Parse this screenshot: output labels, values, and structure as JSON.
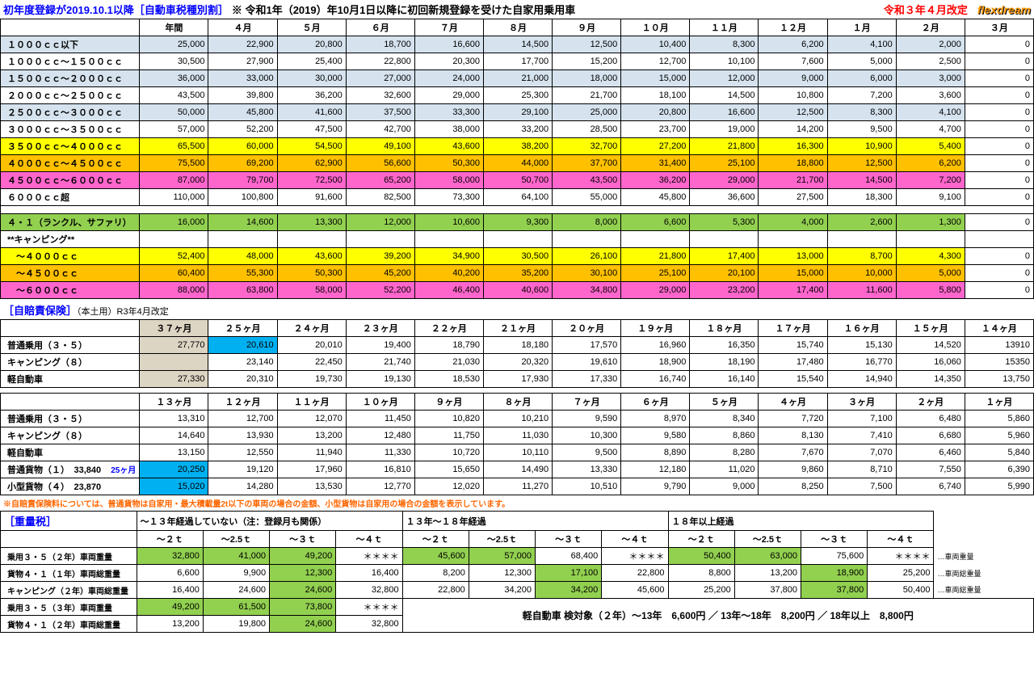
{
  "header": {
    "title_blue": "初年度登録が2019.10.1以降",
    "title_bracket": "［自動車税種別割］",
    "title_note": "※ 令和1年（2019）年10月1日以降に初回新規登録を受けた自家用乗用車",
    "revision": "令和３年４月改定",
    "logo": "flexdream"
  },
  "colors": {
    "lightblue": "#d6e3ef",
    "yellow": "#ffff00",
    "orange": "#ffc000",
    "pink": "#ff66cc",
    "green": "#92d050",
    "tan": "#ddd5c3",
    "cyan": "#00b0f0",
    "white": "#ffffff"
  },
  "tax_table": {
    "headers": [
      "年間",
      "４月",
      "５月",
      "６月",
      "７月",
      "８月",
      "９月",
      "１０月",
      "１１月",
      "１２月",
      "１月",
      "２月",
      "３月"
    ],
    "rows": [
      {
        "label": "１０００ｃｃ以下",
        "color": "lightblue",
        "vals": [
          "25,000",
          "22,900",
          "20,800",
          "18,700",
          "16,600",
          "14,500",
          "12,500",
          "10,400",
          "8,300",
          "6,200",
          "4,100",
          "2,000",
          "0"
        ]
      },
      {
        "label": "１０００ｃｃ～１５００ｃｃ",
        "color": "white",
        "vals": [
          "30,500",
          "27,900",
          "25,400",
          "22,800",
          "20,300",
          "17,700",
          "15,200",
          "12,700",
          "10,100",
          "7,600",
          "5,000",
          "2,500",
          "0"
        ]
      },
      {
        "label": "１５００ｃｃ～２０００ｃｃ",
        "color": "lightblue",
        "vals": [
          "36,000",
          "33,000",
          "30,000",
          "27,000",
          "24,000",
          "21,000",
          "18,000",
          "15,000",
          "12,000",
          "9,000",
          "6,000",
          "3,000",
          "0"
        ]
      },
      {
        "label": "２０００ｃｃ～２５００ｃｃ",
        "color": "white",
        "vals": [
          "43,500",
          "39,800",
          "36,200",
          "32,600",
          "29,000",
          "25,300",
          "21,700",
          "18,100",
          "14,500",
          "10,800",
          "7,200",
          "3,600",
          "0"
        ]
      },
      {
        "label": "２５００ｃｃ～３０００ｃｃ",
        "color": "lightblue",
        "vals": [
          "50,000",
          "45,800",
          "41,600",
          "37,500",
          "33,300",
          "29,100",
          "25,000",
          "20,800",
          "16,600",
          "12,500",
          "8,300",
          "4,100",
          "0"
        ]
      },
      {
        "label": "３０００ｃｃ～３５００ｃｃ",
        "color": "white",
        "vals": [
          "57,000",
          "52,200",
          "47,500",
          "42,700",
          "38,000",
          "33,200",
          "28,500",
          "23,700",
          "19,000",
          "14,200",
          "9,500",
          "4,700",
          "0"
        ]
      },
      {
        "label": "３５００ｃｃ～４０００ｃｃ",
        "color": "yellow",
        "vals": [
          "65,500",
          "60,000",
          "54,500",
          "49,100",
          "43,600",
          "38,200",
          "32,700",
          "27,200",
          "21,800",
          "16,300",
          "10,900",
          "5,400",
          "0"
        ]
      },
      {
        "label": "４０００ｃｃ～４５００ｃｃ",
        "color": "orange",
        "vals": [
          "75,500",
          "69,200",
          "62,900",
          "56,600",
          "50,300",
          "44,000",
          "37,700",
          "31,400",
          "25,100",
          "18,800",
          "12,500",
          "6,200",
          "0"
        ]
      },
      {
        "label": "４５００ｃｃ～６０００ｃｃ",
        "color": "pink",
        "vals": [
          "87,000",
          "79,700",
          "72,500",
          "65,200",
          "58,000",
          "50,700",
          "43,500",
          "36,200",
          "29,000",
          "21,700",
          "14,500",
          "7,200",
          "0"
        ]
      },
      {
        "label": "６０００ｃｃ超",
        "color": "white",
        "vals": [
          "110,000",
          "100,800",
          "91,600",
          "82,500",
          "73,300",
          "64,100",
          "55,000",
          "45,800",
          "36,600",
          "27,500",
          "18,300",
          "9,100",
          "0"
        ]
      }
    ],
    "special_rows": [
      {
        "label": "４・１（ランクル、サファリ）",
        "color": "green",
        "vals": [
          "16,000",
          "14,600",
          "13,300",
          "12,000",
          "10,600",
          "9,300",
          "8,000",
          "6,600",
          "5,300",
          "4,000",
          "2,600",
          "1,300",
          "0"
        ]
      }
    ],
    "camping_label": "**キャンピング**",
    "camping_rows": [
      {
        "label": "　～４０００ｃｃ",
        "color": "yellow",
        "vals": [
          "52,400",
          "48,000",
          "43,600",
          "39,200",
          "34,900",
          "30,500",
          "26,100",
          "21,800",
          "17,400",
          "13,000",
          "8,700",
          "4,300",
          "0"
        ]
      },
      {
        "label": "　～４５００ｃｃ",
        "color": "orange",
        "vals": [
          "60,400",
          "55,300",
          "50,300",
          "45,200",
          "40,200",
          "35,200",
          "30,100",
          "25,100",
          "20,100",
          "15,000",
          "10,000",
          "5,000",
          "0"
        ]
      },
      {
        "label": "　～６０００ｃｃ",
        "color": "pink",
        "vals": [
          "88,000",
          "63,800",
          "58,000",
          "52,200",
          "46,400",
          "40,600",
          "34,800",
          "29,000",
          "23,200",
          "17,400",
          "11,600",
          "5,800",
          "0"
        ]
      }
    ]
  },
  "ins_section": {
    "title": "［自賠責保険］",
    "note": "（本土用）R3年4月改定",
    "headers1": [
      "３７ヶ月",
      "２５ヶ月",
      "２４ヶ月",
      "２３ヶ月",
      "２２ヶ月",
      "２１ヶ月",
      "２０ヶ月",
      "１９ヶ月",
      "１８ヶ月",
      "１７ヶ月",
      "１６ヶ月",
      "１５ヶ月",
      "１４ヶ月"
    ],
    "rows1": [
      {
        "label": "普通乗用（３・５）",
        "hl": [
          0,
          1
        ],
        "vals": [
          "27,770",
          "20,610",
          "20,010",
          "19,400",
          "18,790",
          "18,180",
          "17,570",
          "16,960",
          "16,350",
          "15,740",
          "15,130",
          "14,520",
          "13910"
        ]
      },
      {
        "label": "キャンピング（８）",
        "hl": [],
        "vals": [
          "",
          "23,140",
          "22,450",
          "21,740",
          "21,030",
          "20,320",
          "19,610",
          "18,900",
          "18,190",
          "17,480",
          "16,770",
          "16,060",
          "15350"
        ]
      },
      {
        "label": "軽自動車",
        "hl": [
          0
        ],
        "vals": [
          "27,330",
          "20,310",
          "19,730",
          "19,130",
          "18,530",
          "17,930",
          "17,330",
          "16,740",
          "16,140",
          "15,540",
          "14,940",
          "14,350",
          "13,750"
        ]
      }
    ],
    "headers2": [
      "１３ヶ月",
      "１２ヶ月",
      "１１ヶ月",
      "１０ヶ月",
      "９ヶ月",
      "８ヶ月",
      "７ヶ月",
      "６ヶ月",
      "５ヶ月",
      "４ヶ月",
      "３ヶ月",
      "２ヶ月",
      "１ヶ月"
    ],
    "rows2": [
      {
        "label": "普通乗用（３・５）",
        "extra": "",
        "vals": [
          "13,310",
          "12,700",
          "12,070",
          "11,450",
          "10,820",
          "10,210",
          "9,590",
          "8,970",
          "8,340",
          "7,720",
          "7,100",
          "6,480",
          "5,860"
        ]
      },
      {
        "label": "キャンピング（８）",
        "extra": "",
        "vals": [
          "14,640",
          "13,930",
          "13,200",
          "12,480",
          "11,750",
          "11,030",
          "10,300",
          "9,580",
          "8,860",
          "8,130",
          "7,410",
          "6,680",
          "5,960"
        ]
      },
      {
        "label": "軽自動車",
        "extra": "",
        "vals": [
          "13,150",
          "12,550",
          "11,940",
          "11,330",
          "10,720",
          "10,110",
          "9,500",
          "8,890",
          "8,280",
          "7,670",
          "7,070",
          "6,460",
          "5,840"
        ]
      },
      {
        "label": "普通貨物（１）　33,840",
        "extra": "25ヶ月",
        "hl": [
          0
        ],
        "vals": [
          "20,250",
          "19,120",
          "17,960",
          "16,810",
          "15,650",
          "14,490",
          "13,330",
          "12,180",
          "11,020",
          "9,860",
          "8,710",
          "7,550",
          "6,390"
        ]
      },
      {
        "label": "小型貨物（４）　23,870",
        "extra": "",
        "hl": [
          0
        ],
        "vals": [
          "15,020",
          "14,280",
          "13,530",
          "12,770",
          "12,020",
          "11,270",
          "10,510",
          "9,790",
          "9,000",
          "8,250",
          "7,500",
          "6,740",
          "5,990"
        ]
      }
    ],
    "footnote": "※自賠責保険料については、普通貨物は自家用・最大積載量2t以下の車両の場合の金額、小型貨物は自家用の場合の金額を表示しています。"
  },
  "weight_section": {
    "title": "［重量税］",
    "groups": [
      "～１３年経過していない（注：登録月も関係）",
      "１３年～１８年経過",
      "１８年以上経過"
    ],
    "sub": [
      "～２ｔ",
      "～2.5ｔ",
      "～３ｔ",
      "～４ｔ"
    ],
    "rows": [
      {
        "label": "乗用３・５（２年）車両重量",
        "side": "…車両重量",
        "g": [
          {
            "vals": [
              "32,800",
              "41,000",
              "49,200",
              "＊＊＊＊"
            ],
            "hl": [
              0,
              1,
              2
            ]
          },
          {
            "vals": [
              "45,600",
              "57,000",
              "68,400",
              "＊＊＊＊"
            ],
            "hl": [
              0,
              1
            ]
          },
          {
            "vals": [
              "50,400",
              "63,000",
              "75,600",
              "＊＊＊＊"
            ],
            "hl": [
              0,
              1
            ]
          }
        ]
      },
      {
        "label": "貨物４・１（１年）車両総重量",
        "side": "…車両総重量",
        "g": [
          {
            "vals": [
              "6,600",
              "9,900",
              "12,300",
              "16,400"
            ],
            "hl": [
              2
            ]
          },
          {
            "vals": [
              "8,200",
              "12,300",
              "17,100",
              "22,800"
            ],
            "hl": [
              2
            ]
          },
          {
            "vals": [
              "8,800",
              "13,200",
              "18,900",
              "25,200"
            ],
            "hl": [
              2
            ]
          }
        ]
      },
      {
        "label": "キャンピング（２年）車両総重量",
        "side": "…車両総重量",
        "g": [
          {
            "vals": [
              "16,400",
              "24,600",
              "24,600",
              "32,800"
            ],
            "hl": [
              2
            ]
          },
          {
            "vals": [
              "22,800",
              "34,200",
              "34,200",
              "45,600"
            ],
            "hl": [
              2
            ]
          },
          {
            "vals": [
              "25,200",
              "37,800",
              "37,800",
              "50,400"
            ],
            "hl": [
              2
            ]
          }
        ]
      },
      {
        "label": "乗用３・５（３年）車両重量",
        "side": "",
        "g": [
          {
            "vals": [
              "49,200",
              "61,500",
              "73,800",
              "＊＊＊＊"
            ],
            "hl": [
              0,
              1,
              2
            ]
          }
        ]
      },
      {
        "label": "貨物４・１（２年）車両総重量",
        "side": "",
        "g": [
          {
            "vals": [
              "13,200",
              "19,800",
              "24,600",
              "32,800"
            ],
            "hl": [
              2
            ]
          }
        ]
      }
    ],
    "kei_note": "軽自動車 検対象（２年）～13年　6,600円 ／ 13年～18年　8,200円 ／ 18年以上　8,800円"
  }
}
